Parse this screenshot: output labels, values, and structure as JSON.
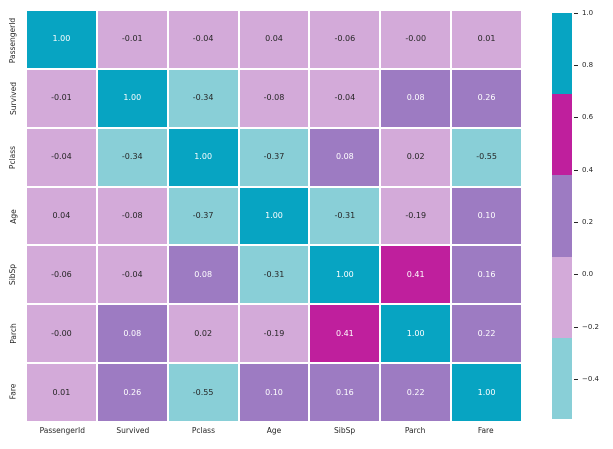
{
  "figure": {
    "background_color": "#ffffff",
    "text_color": "#262626"
  },
  "chart_data": {
    "type": "heatmap",
    "title": "",
    "xlabel": "",
    "ylabel": "",
    "categories": [
      "PassengerId",
      "Survived",
      "Pclass",
      "Age",
      "SibSp",
      "Parch",
      "Fare"
    ],
    "x_tick_labels": [
      "PassengerId",
      "Survived",
      "Pclass",
      "Age",
      "SibSp",
      "Parch",
      "Fare"
    ],
    "y_tick_labels": [
      "PassengerId",
      "Survived",
      "Pclass",
      "Age",
      "SibSp",
      "Parch",
      "Fare"
    ],
    "matrix": [
      [
        1.0,
        -0.01,
        -0.04,
        0.04,
        -0.06,
        -0.0,
        0.01
      ],
      [
        -0.01,
        1.0,
        -0.34,
        -0.08,
        -0.04,
        0.08,
        0.26
      ],
      [
        -0.04,
        -0.34,
        1.0,
        -0.37,
        0.08,
        0.02,
        -0.55
      ],
      [
        0.04,
        -0.08,
        -0.37,
        1.0,
        -0.31,
        -0.19,
        0.1
      ],
      [
        -0.06,
        -0.04,
        0.08,
        -0.31,
        1.0,
        0.41,
        0.16
      ],
      [
        -0.0,
        0.08,
        0.02,
        -0.19,
        0.41,
        1.0,
        0.22
      ],
      [
        0.01,
        0.26,
        -0.55,
        0.1,
        0.16,
        0.22,
        1.0
      ]
    ],
    "cell_text": [
      [
        "1.00",
        "-0.01",
        "-0.04",
        "0.04",
        "-0.06",
        "-0.00",
        "0.01"
      ],
      [
        "-0.01",
        "1.00",
        "-0.34",
        "-0.08",
        "-0.04",
        "0.08",
        "0.26"
      ],
      [
        "-0.04",
        "-0.34",
        "1.00",
        "-0.37",
        "0.08",
        "0.02",
        "-0.55"
      ],
      [
        "0.04",
        "-0.08",
        "-0.37",
        "1.00",
        "-0.31",
        "-0.19",
        "0.10"
      ],
      [
        "-0.06",
        "-0.04",
        "0.08",
        "-0.31",
        "1.00",
        "0.41",
        "0.16"
      ],
      [
        "-0.00",
        "0.08",
        "0.02",
        "-0.19",
        "0.41",
        "1.00",
        "0.22"
      ],
      [
        "0.01",
        "0.26",
        "-0.55",
        "0.10",
        "0.16",
        "0.22",
        "1.00"
      ]
    ],
    "colormap": {
      "type": "discrete",
      "colors_low_to_high": [
        "#89cfd7",
        "#d3aad9",
        "#9d7bc2",
        "#bf1f9d",
        "#07a4c2"
      ],
      "boundaries": [
        -0.55,
        -0.24,
        0.07,
        0.38,
        0.69,
        1.0
      ],
      "vmin": -0.55,
      "vmax": 1.0
    },
    "annotation_text_colors": {
      "on_light": "#262626",
      "on_dark": "#ffffff"
    },
    "gridline_color": "#ffffff",
    "legend_position": "right",
    "colorbar": {
      "tick_values": [
        1.0,
        0.8,
        0.6,
        0.4,
        0.2,
        0.0,
        -0.2,
        -0.4
      ],
      "tick_labels": [
        "1.0",
        "0.8",
        "0.6",
        "0.4",
        "0.2",
        "0.0",
        "−0.2",
        "−0.4"
      ]
    }
  }
}
